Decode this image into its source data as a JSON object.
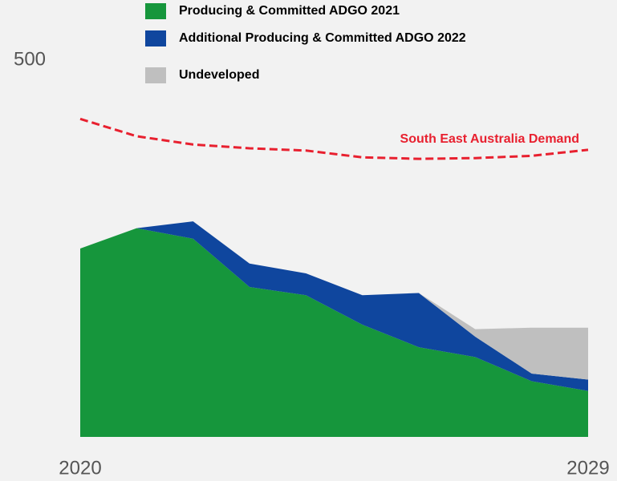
{
  "chart_data": {
    "type": "area",
    "x": [
      2020,
      2021,
      2022,
      2023,
      2024,
      2025,
      2026,
      2027,
      2028,
      2029
    ],
    "xlim": [
      2020,
      2029
    ],
    "xticks": [
      2020,
      2029
    ],
    "ylim": [
      0,
      500
    ],
    "yticks": [
      500
    ],
    "series": [
      {
        "name": "Producing & Committed ADGO 2021",
        "color": "#16963c",
        "stacked": true,
        "values": [
          250,
          277,
          263,
          199,
          188,
          149,
          119,
          106,
          74,
          61
        ]
      },
      {
        "name": "Additional Producing & Committed ADGO 2022",
        "color": "#0f469e",
        "stacked": true,
        "values": [
          0,
          0,
          23,
          31,
          29,
          39,
          72,
          27,
          10,
          15
        ]
      },
      {
        "name": "Undeveloped",
        "color": "#bfbfbf",
        "stacked": true,
        "values": [
          null,
          null,
          null,
          null,
          null,
          null,
          0,
          10,
          61,
          69
        ]
      },
      {
        "name": "South East Australia Demand",
        "color": "#e8202f",
        "stacked": false,
        "style": "dashed",
        "values": [
          422,
          399,
          388,
          383,
          380,
          371,
          369,
          370,
          373,
          381
        ]
      }
    ]
  }
}
